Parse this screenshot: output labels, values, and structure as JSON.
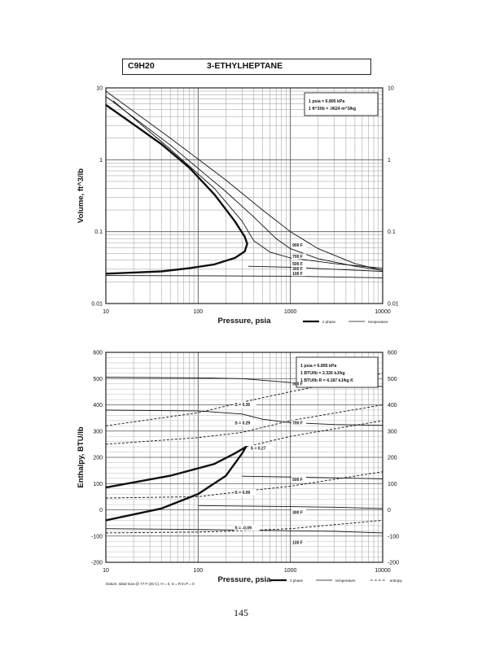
{
  "header": {
    "formula": "C9H20",
    "name": "3-ETHYLHEPTANE"
  },
  "page_number": "145",
  "chart_data": [
    {
      "type": "line",
      "name_key": "volume",
      "xlabel": "Pressure,  psia",
      "ylabel": "Volume, ft^3/lb",
      "xscale": "log",
      "yscale": "log",
      "xlim": [
        10,
        10000
      ],
      "ylim": [
        0.01,
        10
      ],
      "x_ticks": [
        "10",
        "100",
        "1000",
        "10000"
      ],
      "y_ticks": [
        "0.01",
        "0.1",
        "1",
        "10"
      ],
      "grid": true,
      "note_lines": [
        "1 psia  =  6.895 kPa",
        "1 ft^3/lb  =  .0624 m^3/kg"
      ],
      "legend_items": [
        {
          "label": "2 phase",
          "style": "thick"
        },
        {
          "label": "temperature",
          "style": "thin"
        }
      ],
      "series": [
        {
          "kind": "2 phase",
          "points": [
            [
              10,
              5.8
            ],
            [
              20,
              3.1
            ],
            [
              40,
              1.65
            ],
            [
              80,
              0.78
            ],
            [
              150,
              0.33
            ],
            [
              250,
              0.14
            ],
            [
              320,
              0.085
            ],
            [
              340,
              0.068
            ],
            [
              320,
              0.053
            ],
            [
              250,
              0.043
            ],
            [
              150,
              0.035
            ],
            [
              80,
              0.031
            ],
            [
              40,
              0.028
            ],
            [
              20,
              0.027
            ],
            [
              10,
              0.026
            ]
          ]
        },
        {
          "label": "900 F",
          "points": [
            [
              10,
              9.0
            ],
            [
              50,
              2.0
            ],
            [
              200,
              0.52
            ],
            [
              500,
              0.2
            ],
            [
              1000,
              0.1
            ],
            [
              2000,
              0.058
            ],
            [
              5000,
              0.036
            ],
            [
              10000,
              0.029
            ]
          ]
        },
        {
          "label": "700 F",
          "points": [
            [
              10,
              7.6
            ],
            [
              50,
              1.6
            ],
            [
              200,
              0.36
            ],
            [
              400,
              0.16
            ],
            [
              700,
              0.08
            ],
            [
              1000,
              0.058
            ],
            [
              2000,
              0.042
            ],
            [
              5000,
              0.033
            ],
            [
              10000,
              0.029
            ]
          ]
        },
        {
          "label": "500 F",
          "points": [
            [
              12,
              6.6
            ],
            [
              50,
              1.4
            ],
            [
              150,
              0.4
            ],
            [
              300,
              0.14
            ],
            [
              400,
              0.075
            ],
            [
              600,
              0.052
            ],
            [
              1000,
              0.043
            ],
            [
              3000,
              0.036
            ],
            [
              10000,
              0.031
            ]
          ]
        },
        {
          "label": "300 F",
          "points": [
            [
              350,
              0.033
            ],
            [
              1000,
              0.032
            ],
            [
              3000,
              0.03
            ],
            [
              10000,
              0.028
            ]
          ]
        },
        {
          "label": "100 F",
          "points": [
            [
              10,
              0.0245
            ],
            [
              100,
              0.0243
            ],
            [
              1000,
              0.024
            ],
            [
              10000,
              0.0228
            ]
          ]
        }
      ],
      "curve_labels": [
        {
          "text": "900 F",
          "x": 1050,
          "y": 0.062
        },
        {
          "text": "700 F",
          "x": 1050,
          "y": 0.043
        },
        {
          "text": "500 F",
          "x": 1050,
          "y": 0.034
        },
        {
          "text": "300 F",
          "x": 1050,
          "y": 0.029
        },
        {
          "text": "100 F",
          "x": 1050,
          "y": 0.025
        }
      ]
    },
    {
      "type": "line",
      "name_key": "enthalpy",
      "xlabel": "Pressure,  psia",
      "ylabel": "Enthalpy, BTU/lb",
      "xscale": "log",
      "yscale": "linear",
      "xlim": [
        10,
        10000
      ],
      "ylim": [
        -200,
        600
      ],
      "x_ticks": [
        "10",
        "100",
        "1000",
        "10000"
      ],
      "y_ticks": [
        "-200",
        "-100",
        "0",
        "100",
        "200",
        "300",
        "400",
        "500",
        "600"
      ],
      "grid": true,
      "note_lines": [
        "1 psia  =  6.895 kPa",
        "1 BTU/lb  =  2.326 kJ/kg",
        "1 BTU/lb R  =  4.187 kJ/kg K"
      ],
      "legend_items": [
        {
          "label": "2 phase",
          "style": "thick"
        },
        {
          "label": "temperature",
          "style": "thin"
        },
        {
          "label": "entropy",
          "style": "dashed"
        }
      ],
      "datum_note": "Datum: Ideal Gas @ 77 F (25 C),  H = 0,  S = R ln P = 0",
      "series": [
        {
          "kind": "2 phase",
          "points": [
            [
              10,
              85
            ],
            [
              50,
              130
            ],
            [
              150,
              175
            ],
            [
              250,
              215
            ],
            [
              330,
              240
            ],
            [
              300,
              215
            ],
            [
              200,
              130
            ],
            [
              100,
              60
            ],
            [
              40,
              5
            ],
            [
              10,
              -40
            ]
          ]
        },
        {
          "label": "900 F",
          "points": [
            [
              10,
              505
            ],
            [
              100,
              503
            ],
            [
              300,
              500
            ],
            [
              1000,
              485
            ],
            [
              3000,
              472
            ],
            [
              10000,
              470
            ]
          ]
        },
        {
          "label": "700 F",
          "points": [
            [
              10,
              380
            ],
            [
              100,
              377
            ],
            [
              300,
              365
            ],
            [
              500,
              345
            ],
            [
              1000,
              332
            ],
            [
              3000,
              325
            ],
            [
              10000,
              322
            ]
          ]
        },
        {
          "label": "500 F",
          "points": [
            [
              300,
              128
            ],
            [
              1000,
              125
            ],
            [
              3000,
              122
            ],
            [
              10000,
              118
            ]
          ]
        },
        {
          "label": "300 F",
          "points": [
            [
              100,
              16
            ],
            [
              1000,
              12
            ],
            [
              3000,
              10
            ],
            [
              10000,
              5
            ]
          ]
        },
        {
          "label": "100 F",
          "points": [
            [
              10,
              -72
            ],
            [
              100,
              -75
            ],
            [
              1000,
              -80
            ],
            [
              3000,
              -82
            ],
            [
              10000,
              -88
            ]
          ]
        },
        {
          "label": "S = 0.36",
          "dashed": true,
          "points": [
            [
              10,
              320
            ],
            [
              100,
              370
            ],
            [
              300,
              410
            ],
            [
              1000,
              450
            ],
            [
              10000,
              520
            ]
          ]
        },
        {
          "label": "S = 0.29",
          "dashed": true,
          "points": [
            [
              10,
              250
            ],
            [
              100,
              275
            ],
            [
              300,
              295
            ],
            [
              1000,
              340
            ],
            [
              10000,
              400
            ]
          ]
        },
        {
          "label": "S = 0.27",
          "dashed": true,
          "points": [
            [
              330,
              240
            ],
            [
              1000,
              280
            ],
            [
              10000,
              340
            ]
          ]
        },
        {
          "label": "S = 0.09",
          "dashed": true,
          "points": [
            [
              10,
              45
            ],
            [
              100,
              50
            ],
            [
              300,
              70
            ],
            [
              1000,
              90
            ],
            [
              10000,
              145
            ]
          ]
        },
        {
          "label": "S = -0.09",
          "dashed": true,
          "points": [
            [
              10,
              -88
            ],
            [
              100,
              -85
            ],
            [
              300,
              -80
            ],
            [
              1000,
              -72
            ],
            [
              10000,
              -40
            ]
          ]
        }
      ],
      "curve_labels": [
        {
          "text": "900 F",
          "x": 1050,
          "y": 475
        },
        {
          "text": "700 F",
          "x": 1050,
          "y": 325
        },
        {
          "text": "500 F",
          "x": 1050,
          "y": 110
        },
        {
          "text": "300 F",
          "x": 1050,
          "y": -15
        },
        {
          "text": "100 F",
          "x": 1050,
          "y": -130
        },
        {
          "text": "S = 0.36",
          "x": 250,
          "y": 395
        },
        {
          "text": "S = 0.29",
          "x": 250,
          "y": 325
        },
        {
          "text": "S = 0.27",
          "x": 370,
          "y": 230
        },
        {
          "text": "S = 0.09",
          "x": 250,
          "y": 60
        },
        {
          "text": "S = -0.09",
          "x": 250,
          "y": -75
        }
      ]
    }
  ]
}
